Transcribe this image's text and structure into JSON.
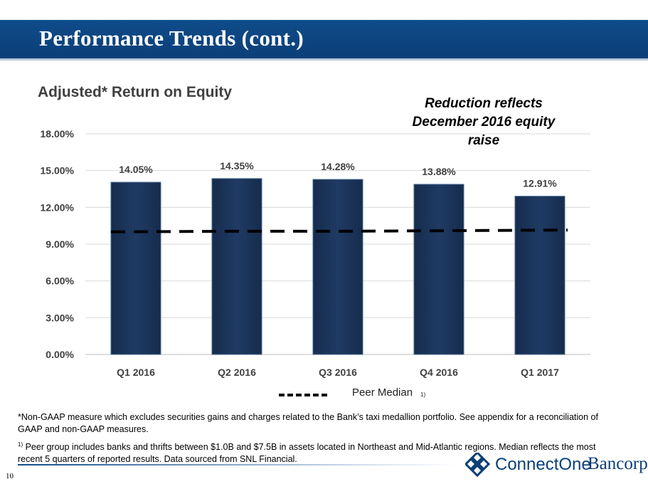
{
  "header": {
    "title": "Performance Trends (cont.)"
  },
  "chart_data": {
    "type": "bar",
    "title": "Adjusted* Return on Equity",
    "categories": [
      "Q1 2016",
      "Q2 2016",
      "Q3 2016",
      "Q4 2016",
      "Q1 2017"
    ],
    "series": [
      {
        "values": [
          14.05,
          14.35,
          14.28,
          13.88,
          12.91
        ],
        "data_labels": [
          "14.05%",
          "14.35%",
          "14.28%",
          "13.88%",
          "12.91%"
        ],
        "color": "#1f3a63"
      },
      {
        "name": "Peer Median",
        "type": "line",
        "style": "dashed",
        "values": [
          10.0,
          10.05,
          10.05,
          10.1,
          10.15
        ],
        "color": "#000000"
      }
    ],
    "yticks": [
      "0.00%",
      "3.00%",
      "6.00%",
      "9.00%",
      "12.00%",
      "15.00%",
      "18.00%"
    ],
    "ylim": [
      0,
      18
    ],
    "grid": true,
    "legend_position": "bottom",
    "annotation": "Reduction reflects December 2016 equity raise"
  },
  "legend": {
    "label": "Peer Median",
    "superscript": "1)"
  },
  "footnotes": {
    "non_gaap": "*Non-GAAP measure which excludes securities gains and charges related to the Bank’s taxi medallion portfolio. See appendix for a reconciliation of GAAP and non-GAAP measures.",
    "peer_marker": "1)",
    "peer_group": " Peer group includes banks and thrifts between $1.0B and $7.5B in assets located in Northeast and Mid-Atlantic regions.  Median reflects the most recent 5 quarters of reported results. Data sourced from SNL Financial."
  },
  "page_number": "10",
  "logo": {
    "name_part1": "ConnectOne",
    "name_part2": "Bancorp",
    "icon": "connectone-diamond-logo-icon"
  }
}
